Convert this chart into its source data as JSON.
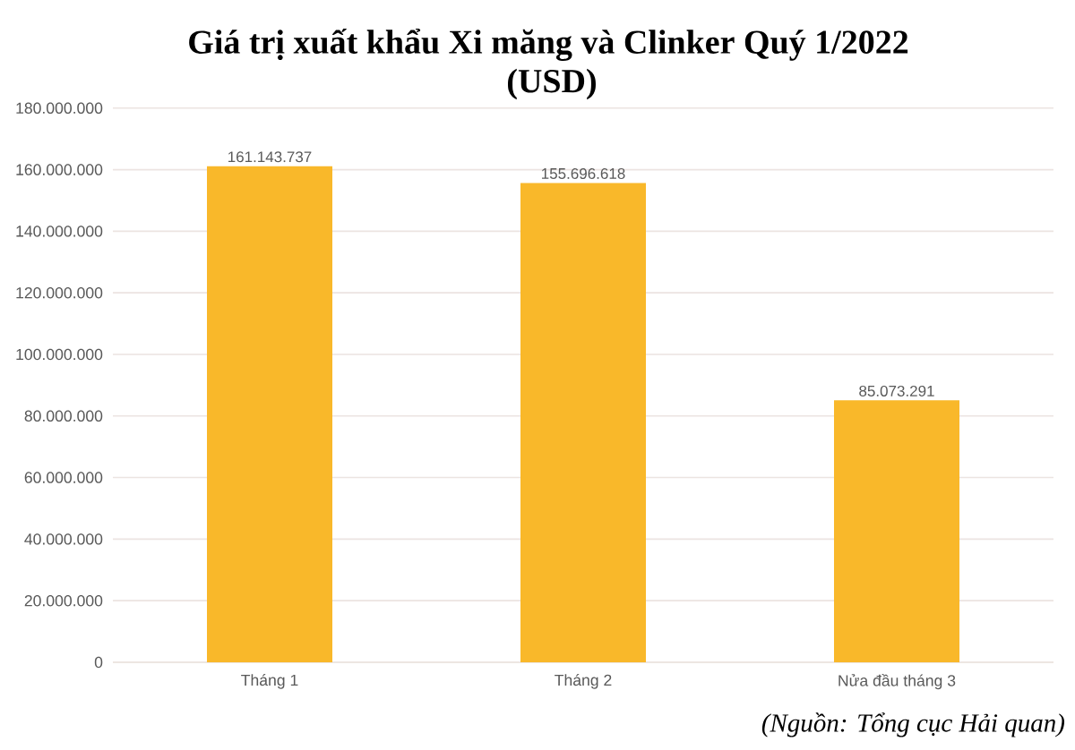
{
  "chart_data": {
    "type": "bar",
    "title": "Giá trị xuất khẩu Xi măng và Clinker Quý 1/2022",
    "subtitle": "(USD)",
    "categories": [
      "Tháng 1",
      "Tháng 2",
      "Nửa đầu tháng 3"
    ],
    "values": [
      161143737,
      155696618,
      85073291
    ],
    "value_labels": [
      "161.143.737",
      "155.696.618",
      "85.073.291"
    ],
    "color": "#f9b82a",
    "ylim": [
      0,
      180000000
    ],
    "yticks": [
      0,
      {
        "value": 20000000,
        "label": "20.000.000"
      },
      {
        "value": 40000000,
        "label": "40.000.000"
      },
      {
        "value": 60000000,
        "label": "60.000.000"
      },
      {
        "value": 80000000,
        "label": "80.000.000"
      },
      {
        "value": 100000000,
        "label": "100.000.000"
      },
      {
        "value": 120000000,
        "label": "120.000.000"
      },
      {
        "value": 140000000,
        "label": "140.000.000"
      },
      {
        "value": 160000000,
        "label": "160.000.000"
      },
      {
        "value": 180000000,
        "label": "180.000.000"
      }
    ],
    "grid": "y",
    "annotations": [
      "(Nguồn: Tổng cục Hải quan)"
    ]
  }
}
